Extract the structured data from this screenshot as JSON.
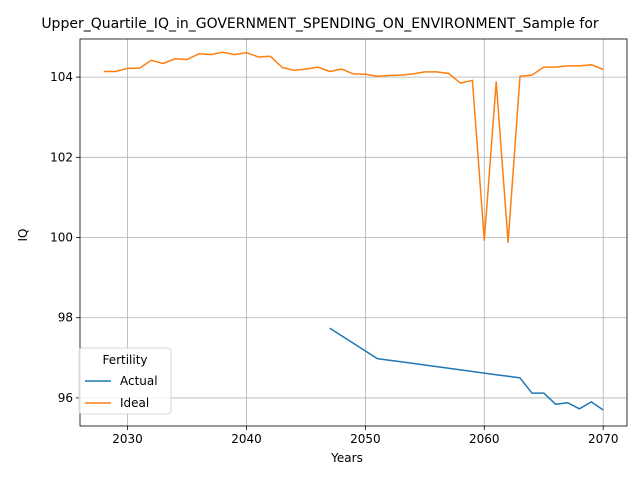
{
  "chart_data": {
    "type": "line",
    "title": "Upper_Quartile_IQ_in_GOVERNMENT_SPENDING_ON_ENVIRONMENT_Sample for",
    "xlabel": "Years",
    "ylabel": "IQ",
    "xlim": [
      2026,
      2072
    ],
    "ylim": [
      95.3,
      104.95
    ],
    "xticks": [
      2030,
      2040,
      2050,
      2060,
      2070
    ],
    "yticks": [
      96,
      98,
      100,
      102,
      104
    ],
    "grid": true,
    "legend": {
      "title": "Fertility",
      "position": "lower-left"
    },
    "series": [
      {
        "name": "Actual",
        "color": "#1f77b4",
        "x": [
          2047,
          2048,
          2049,
          2050,
          2051,
          2052,
          2053,
          2054,
          2055,
          2056,
          2057,
          2058,
          2059,
          2060,
          2061,
          2062,
          2063,
          2064,
          2065,
          2066,
          2067,
          2068,
          2069,
          2070
        ],
        "y": [
          97.74,
          97.55,
          97.36,
          97.17,
          96.98,
          96.94,
          96.9,
          96.86,
          96.82,
          96.78,
          96.74,
          96.7,
          96.66,
          96.62,
          96.58,
          96.54,
          96.5,
          96.12,
          96.12,
          95.84,
          95.88,
          95.73,
          95.9,
          95.7
        ]
      },
      {
        "name": "Ideal",
        "color": "#ff7f0e",
        "x": [
          2028,
          2029,
          2030,
          2031,
          2032,
          2033,
          2034,
          2035,
          2036,
          2037,
          2038,
          2039,
          2040,
          2041,
          2042,
          2043,
          2044,
          2045,
          2046,
          2047,
          2048,
          2049,
          2050,
          2051,
          2052,
          2053,
          2054,
          2055,
          2056,
          2057,
          2058,
          2059,
          2060,
          2061,
          2062,
          2063,
          2064,
          2065,
          2066,
          2067,
          2068,
          2069,
          2070
        ],
        "y": [
          104.14,
          104.14,
          104.22,
          104.22,
          104.42,
          104.34,
          104.46,
          104.44,
          104.58,
          104.56,
          104.62,
          104.56,
          104.61,
          104.5,
          104.52,
          104.24,
          104.17,
          104.2,
          104.25,
          104.14,
          104.2,
          104.08,
          104.07,
          104.02,
          104.04,
          104.05,
          104.08,
          104.13,
          104.13,
          104.09,
          103.85,
          103.92,
          99.93,
          103.88,
          99.88,
          104.02,
          104.05,
          104.25,
          104.25,
          104.28,
          104.28,
          104.31,
          104.19
        ]
      }
    ]
  }
}
